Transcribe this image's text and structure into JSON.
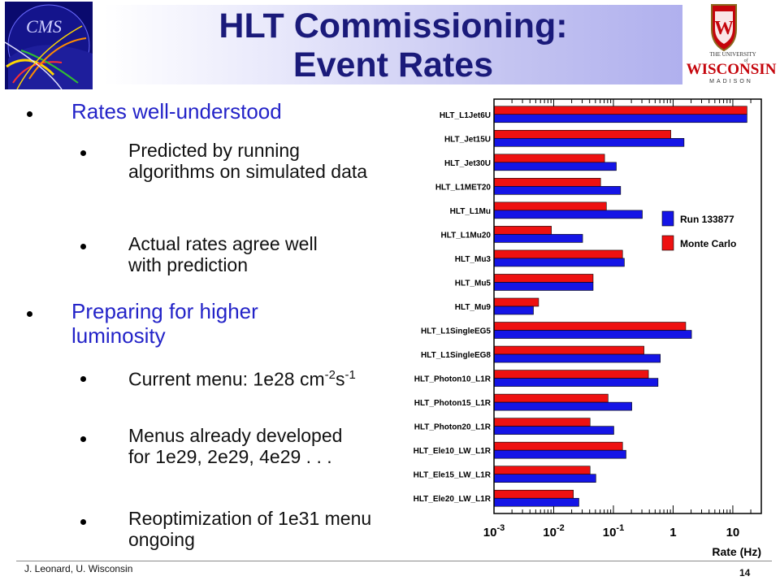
{
  "slide": {
    "title_line1": "HLT Commissioning:",
    "title_line2": "Event Rates",
    "bullets": [
      {
        "text": "Rates well-understood"
      },
      {
        "text": "Predicted by running algorithms on simulated data"
      },
      {
        "text": "Actual rates agree well with prediction"
      },
      {
        "text": "Preparing for higher luminosity"
      },
      {
        "text_pre": "Current menu: 1e28 cm",
        "sup1": "-2",
        "text_mid": "s",
        "sup2": "-1"
      },
      {
        "text": "Menus already developed for 1e29, 2e29, 4e29 . . ."
      },
      {
        "text": "Reoptimization of 1e31 menu ongoing"
      }
    ],
    "footer_author": "J. Leonard,  U. Wisconsin",
    "page_number": "14",
    "logos": {
      "cms": "CMS",
      "uw_line1": "THE UNIVERSITY",
      "uw_line2": "of",
      "uw_line3": "WISCONSIN",
      "uw_line4": "MADISON"
    }
  },
  "chart_data": {
    "type": "bar",
    "orientation": "horizontal",
    "x_scale": "log",
    "xlim": [
      0.001,
      30
    ],
    "xlabel": "Rate (Hz)",
    "x_ticks": [
      {
        "value": 0.001,
        "base": "10",
        "exp": "-3"
      },
      {
        "value": 0.01,
        "base": "10",
        "exp": "-2"
      },
      {
        "value": 0.1,
        "base": "10",
        "exp": "-1"
      },
      {
        "value": 1,
        "base": "1",
        "exp": ""
      },
      {
        "value": 10,
        "base": "10",
        "exp": ""
      }
    ],
    "categories": [
      "HLT_L1Jet6U",
      "HLT_Jet15U",
      "HLT_Jet30U",
      "HLT_L1MET20",
      "HLT_L1Mu",
      "HLT_L1Mu20",
      "HLT_Mu3",
      "HLT_Mu5",
      "HLT_Mu9",
      "HLT_L1SingleEG5",
      "HLT_L1SingleEG8",
      "HLT_Photon10_L1R",
      "HLT_Photon15_L1R",
      "HLT_Photon20_L1R",
      "HLT_Ele10_LW_L1R",
      "HLT_Ele15_LW_L1R",
      "HLT_Ele20_LW_L1R"
    ],
    "series": [
      {
        "name": "Run 133877",
        "color": "#1515e6",
        "values": [
          17,
          1.5,
          0.11,
          0.13,
          0.3,
          0.03,
          0.15,
          0.045,
          0.0045,
          2.0,
          0.6,
          0.55,
          0.2,
          0.1,
          0.16,
          0.05,
          0.026
        ]
      },
      {
        "name": "Monte Carlo",
        "color": "#ee1111",
        "values": [
          17,
          0.9,
          0.07,
          0.06,
          0.075,
          0.009,
          0.14,
          0.045,
          0.0055,
          1.6,
          0.32,
          0.38,
          0.08,
          0.04,
          0.14,
          0.04,
          0.021
        ]
      }
    ],
    "legend_position": "right"
  }
}
